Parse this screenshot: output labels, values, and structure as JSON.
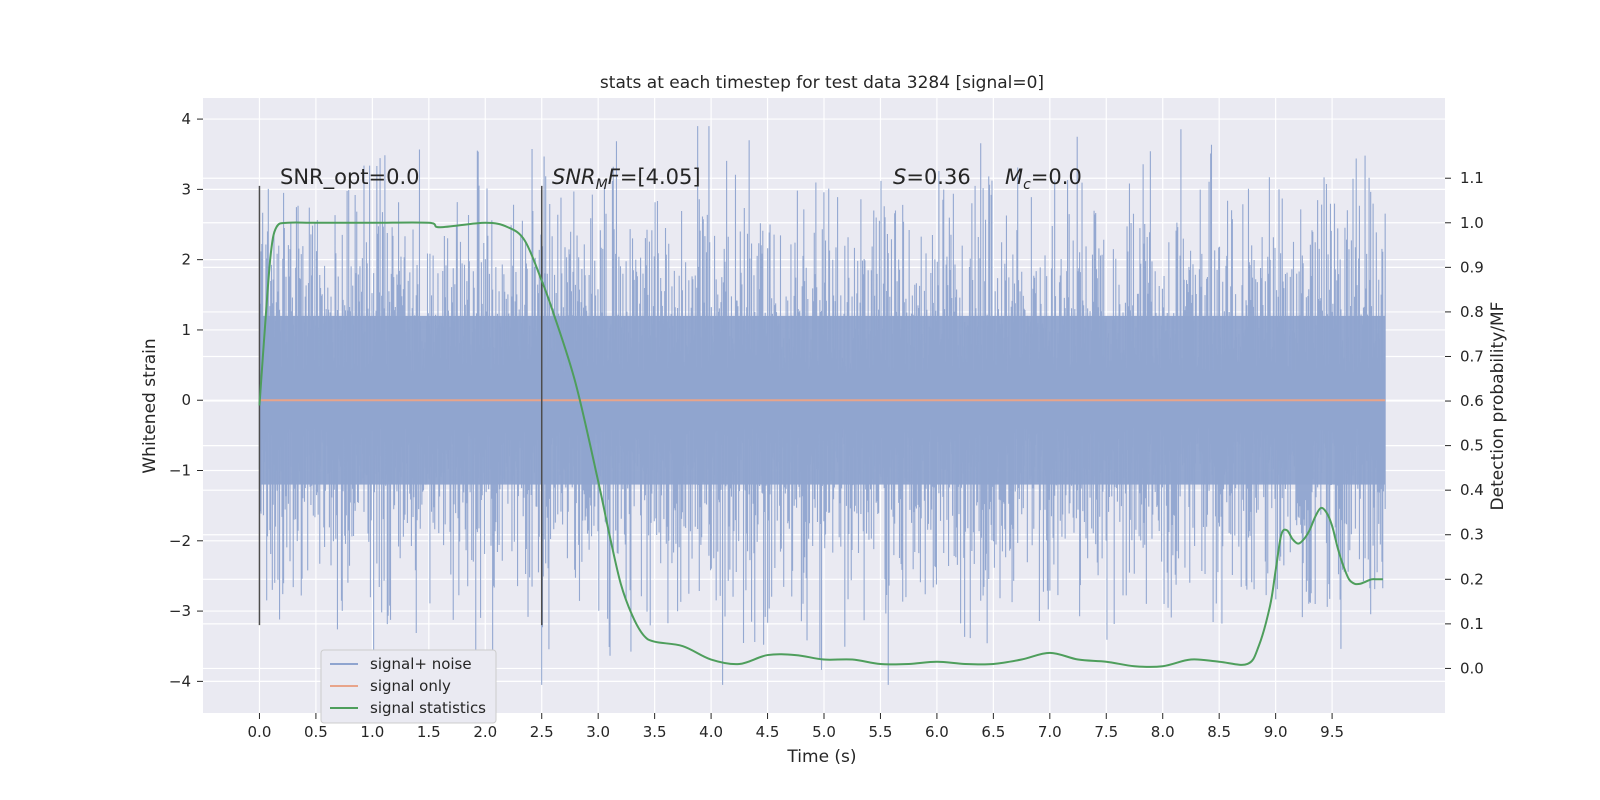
{
  "chart_data": {
    "type": "line",
    "title": "stats at each timestep for test data 3284 [signal=0]",
    "xlabel": "Time (s)",
    "ylabel": "Whitened strain",
    "y2label": "Detection probability/MF",
    "xlim": [
      -0.5,
      10.5
    ],
    "ylim": [
      -4.45,
      4.3
    ],
    "y2lim": [
      -0.1,
      1.28
    ],
    "xticks": [
      0.0,
      0.5,
      1.0,
      1.5,
      2.0,
      2.5,
      3.0,
      3.5,
      4.0,
      4.5,
      5.0,
      5.5,
      6.0,
      6.5,
      7.0,
      7.5,
      8.0,
      8.5,
      9.0,
      9.5
    ],
    "xtick_labels": [
      "0.0",
      "0.5",
      "1.0",
      "1.5",
      "2.0",
      "2.5",
      "3.0",
      "3.5",
      "4.0",
      "4.5",
      "5.0",
      "5.5",
      "6.0",
      "6.5",
      "7.0",
      "7.5",
      "8.0",
      "8.5",
      "9.0",
      "9.5"
    ],
    "yticks": [
      -4,
      -3,
      -2,
      -1,
      0,
      1,
      2,
      3,
      4
    ],
    "ytick_labels": [
      "−4",
      "−3",
      "−2",
      "−1",
      "0",
      "1",
      "2",
      "3",
      "4"
    ],
    "y2ticks": [
      0.0,
      0.1,
      0.2,
      0.3,
      0.4,
      0.5,
      0.6,
      0.7,
      0.8,
      0.9,
      1.0,
      1.1
    ],
    "y2tick_labels": [
      "0.0",
      "0.1",
      "0.2",
      "0.3",
      "0.4",
      "0.5",
      "0.6",
      "0.7",
      "0.8",
      "0.9",
      "1.0",
      "1.1"
    ],
    "grid": true,
    "legend_position": "lower-left",
    "annotations": {
      "snr_opt": "SNR_opt=0.0",
      "snr_mf_label": "SNR",
      "snr_mf_sub": "M",
      "snr_mf_tail": "F",
      "snr_mf_value": "=[4.05]",
      "s_label": "S",
      "s_value": "=0.36",
      "mc_label": "M",
      "mc_sub": "c",
      "mc_value": "=0.0"
    },
    "vertical_markers": [
      {
        "x": 0.0,
        "y_range": [
          -3.2,
          3.05
        ]
      },
      {
        "x": 2.5,
        "y_range": [
          -3.2,
          3.05
        ]
      }
    ],
    "series": [
      {
        "name": "signal+ noise",
        "color": "#8fa4cf",
        "axis": "left",
        "x_range": [
          0.0,
          9.97
        ],
        "noise_envelope": {
          "typical_abs": 1.3,
          "max": 3.9,
          "min": -4.05
        }
      },
      {
        "name": "signal only",
        "color": "#e8a48a",
        "axis": "left",
        "x": [
          0.0,
          9.97
        ],
        "y": [
          0.0,
          0.0
        ]
      },
      {
        "name": "signal statistics",
        "color": "#4e9e5c",
        "axis": "right",
        "x": [
          0.0,
          0.05,
          0.1,
          0.15,
          0.25,
          0.5,
          1.0,
          1.5,
          1.6,
          2.0,
          2.2,
          2.35,
          2.5,
          2.6,
          2.8,
          3.0,
          3.1,
          3.2,
          3.3,
          3.4,
          3.5,
          3.75,
          4.0,
          4.25,
          4.5,
          4.75,
          5.0,
          5.25,
          5.5,
          5.75,
          6.0,
          6.25,
          6.5,
          6.75,
          7.0,
          7.25,
          7.5,
          7.75,
          8.0,
          8.25,
          8.5,
          8.75,
          8.85,
          8.95,
          9.0,
          9.05,
          9.1,
          9.15,
          9.2,
          9.25,
          9.3,
          9.35,
          9.4,
          9.45,
          9.5,
          9.55,
          9.6,
          9.65,
          9.7,
          9.75,
          9.8,
          9.85,
          9.9,
          9.95
        ],
        "y": [
          0.59,
          0.77,
          0.93,
          0.99,
          1.0,
          1.0,
          1.0,
          1.0,
          0.99,
          1.0,
          0.99,
          0.96,
          0.87,
          0.8,
          0.64,
          0.42,
          0.3,
          0.19,
          0.12,
          0.075,
          0.06,
          0.05,
          0.02,
          0.01,
          0.03,
          0.03,
          0.02,
          0.02,
          0.01,
          0.01,
          0.015,
          0.01,
          0.01,
          0.02,
          0.035,
          0.02,
          0.015,
          0.005,
          0.005,
          0.02,
          0.015,
          0.01,
          0.05,
          0.14,
          0.22,
          0.3,
          0.31,
          0.29,
          0.28,
          0.29,
          0.31,
          0.34,
          0.36,
          0.35,
          0.32,
          0.27,
          0.23,
          0.2,
          0.19,
          0.19,
          0.195,
          0.2,
          0.2,
          0.2
        ]
      }
    ]
  }
}
